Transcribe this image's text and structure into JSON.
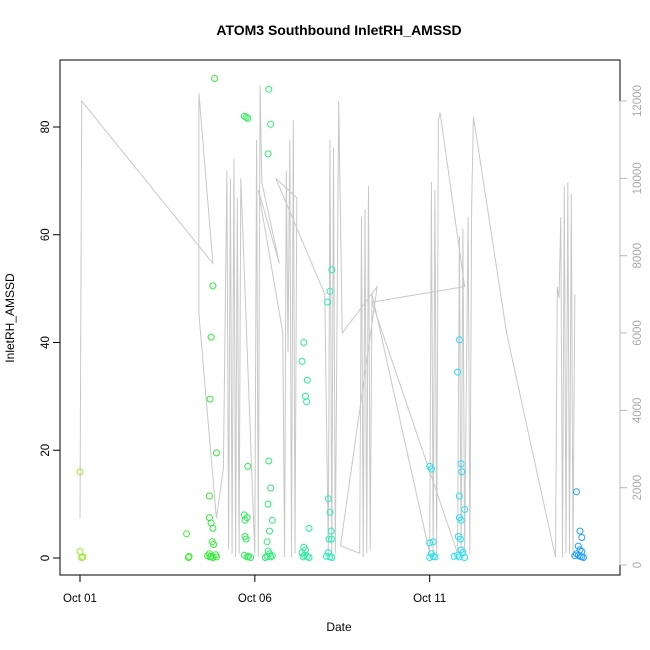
{
  "chart_data": {
    "type": "scatter",
    "title": "ATOM3 Southbound InletRH_AMSSD",
    "xlabel": "Date",
    "ylabel": "InletRH_AMSSD",
    "x_axis": {
      "range_days": [
        0,
        14.7
      ],
      "ticks": [
        {
          "day": 0,
          "label": "Oct 01"
        },
        {
          "day": 5,
          "label": "Oct 06"
        },
        {
          "day": 10,
          "label": "Oct 11"
        }
      ]
    },
    "y_left": {
      "range": [
        -3.5,
        92.5
      ],
      "ticks": [
        0,
        20,
        40,
        60,
        80
      ]
    },
    "y_right": {
      "range": [
        -200,
        12800
      ],
      "ticks": [
        0,
        2000,
        4000,
        6000,
        8000,
        10000,
        12000
      ],
      "color": "#bbbbbb"
    },
    "line_series": {
      "color": "#c8c8c8",
      "points": [
        [
          0.0,
          1200
        ],
        [
          0.05,
          12000
        ],
        [
          3.8,
          7800
        ],
        [
          3.4,
          12200
        ],
        [
          3.4,
          6500
        ],
        [
          3.9,
          1200
        ],
        [
          4.1,
          2500
        ],
        [
          4.2,
          10200
        ],
        [
          4.25,
          400
        ],
        [
          4.3,
          10000
        ],
        [
          4.35,
          300
        ],
        [
          4.4,
          10500
        ],
        [
          4.45,
          200
        ],
        [
          4.5,
          9500
        ],
        [
          4.55,
          300
        ],
        [
          4.6,
          10000
        ],
        [
          5.0,
          300
        ],
        [
          5.05,
          11000
        ],
        [
          5.1,
          200
        ],
        [
          5.15,
          12400
        ],
        [
          5.2,
          9900
        ],
        [
          5.7,
          7800
        ],
        [
          5.1,
          9700
        ],
        [
          5.8,
          6000
        ],
        [
          5.85,
          200
        ],
        [
          5.9,
          10200
        ],
        [
          5.95,
          5500
        ],
        [
          6.0,
          11000
        ],
        [
          6.05,
          200
        ],
        [
          6.1,
          11500
        ],
        [
          6.15,
          300
        ],
        [
          6.2,
          9500
        ],
        [
          5.6,
          10000
        ],
        [
          7.0,
          7000
        ],
        [
          7.1,
          300
        ],
        [
          7.15,
          11000
        ],
        [
          7.2,
          200
        ],
        [
          7.25,
          10800
        ],
        [
          7.3,
          300
        ],
        [
          7.4,
          12000
        ],
        [
          7.5,
          6000
        ],
        [
          8.5,
          7200
        ],
        [
          7.45,
          500
        ],
        [
          8.0,
          300
        ],
        [
          8.05,
          9000
        ],
        [
          8.1,
          200
        ],
        [
          8.15,
          9200
        ],
        [
          8.2,
          300
        ],
        [
          8.25,
          9800
        ],
        [
          8.3,
          400
        ],
        [
          8.35,
          7000
        ],
        [
          10.0,
          300
        ],
        [
          10.05,
          9900
        ],
        [
          10.1,
          200
        ],
        [
          10.15,
          9700
        ],
        [
          10.2,
          300
        ],
        [
          10.25,
          11500
        ],
        [
          10.3,
          11700
        ],
        [
          11.0,
          7200
        ],
        [
          8.35,
          6800
        ],
        [
          10.8,
          300
        ],
        [
          10.85,
          8500
        ],
        [
          10.9,
          200
        ],
        [
          10.95,
          8700
        ],
        [
          11.0,
          300
        ],
        [
          11.1,
          9000
        ],
        [
          11.15,
          300
        ],
        [
          11.2,
          9200
        ],
        [
          11.25,
          11600
        ],
        [
          12.2,
          6000
        ],
        [
          13.6,
          200
        ],
        [
          13.65,
          7200
        ],
        [
          13.7,
          6900
        ],
        [
          13.75,
          9000
        ],
        [
          13.8,
          200
        ],
        [
          13.85,
          9800
        ],
        [
          13.9,
          300
        ],
        [
          13.95,
          9900
        ],
        [
          14.0,
          300
        ],
        [
          14.05,
          9600
        ],
        [
          14.1,
          200
        ],
        [
          14.15,
          7000
        ]
      ]
    },
    "scatter_points": [
      [
        0.0,
        16
      ],
      [
        0.0,
        1.2
      ],
      [
        0.05,
        0.1
      ],
      [
        0.08,
        0.2
      ],
      [
        3.05,
        4.5
      ],
      [
        3.1,
        0.1
      ],
      [
        3.12,
        0.3
      ],
      [
        3.7,
        11.5
      ],
      [
        3.72,
        29.5
      ],
      [
        3.75,
        41
      ],
      [
        3.8,
        50.5
      ],
      [
        3.85,
        89
      ],
      [
        3.9,
        19.5
      ],
      [
        3.7,
        7.5
      ],
      [
        3.75,
        6.5
      ],
      [
        3.8,
        5.5
      ],
      [
        3.78,
        3
      ],
      [
        3.82,
        2.5
      ],
      [
        3.7,
        0.8
      ],
      [
        3.75,
        0.3
      ],
      [
        3.8,
        0.1
      ],
      [
        3.88,
        0.6
      ],
      [
        3.9,
        0.2
      ],
      [
        3.65,
        0.4
      ],
      [
        3.72,
        0.2
      ],
      [
        4.7,
        82
      ],
      [
        4.75,
        81.8
      ],
      [
        4.8,
        81.6
      ],
      [
        4.7,
        8
      ],
      [
        4.72,
        7
      ],
      [
        4.78,
        7.5
      ],
      [
        4.8,
        17
      ],
      [
        4.72,
        4
      ],
      [
        4.75,
        3.5
      ],
      [
        4.7,
        0.5
      ],
      [
        4.78,
        0.2
      ],
      [
        4.82,
        0.3
      ],
      [
        4.88,
        0.1
      ],
      [
        5.4,
        87
      ],
      [
        5.45,
        80.5
      ],
      [
        5.38,
        75
      ],
      [
        5.4,
        18
      ],
      [
        5.45,
        13
      ],
      [
        5.38,
        10
      ],
      [
        5.5,
        7
      ],
      [
        5.42,
        5
      ],
      [
        5.35,
        3
      ],
      [
        5.38,
        1.3
      ],
      [
        5.42,
        0.8
      ],
      [
        5.35,
        0.3
      ],
      [
        5.45,
        0.2
      ],
      [
        5.5,
        0.4
      ],
      [
        5.3,
        0.1
      ],
      [
        6.4,
        40
      ],
      [
        6.35,
        36.5
      ],
      [
        6.5,
        33
      ],
      [
        6.45,
        30
      ],
      [
        6.48,
        29
      ],
      [
        6.55,
        5.5
      ],
      [
        6.4,
        2
      ],
      [
        6.45,
        1.5
      ],
      [
        6.35,
        1
      ],
      [
        6.42,
        0.5
      ],
      [
        6.5,
        0.3
      ],
      [
        6.55,
        0.1
      ],
      [
        6.38,
        0.2
      ],
      [
        7.2,
        53.5
      ],
      [
        7.15,
        49.5
      ],
      [
        7.08,
        47.5
      ],
      [
        7.1,
        11
      ],
      [
        7.15,
        8.5
      ],
      [
        7.18,
        5
      ],
      [
        7.12,
        3.5
      ],
      [
        7.2,
        3.5
      ],
      [
        7.1,
        1
      ],
      [
        7.05,
        0.3
      ],
      [
        7.15,
        0.2
      ],
      [
        7.2,
        0.1
      ],
      [
        10.0,
        17
      ],
      [
        10.05,
        16.5
      ],
      [
        10.1,
        3
      ],
      [
        10.0,
        2.8
      ],
      [
        10.05,
        0.8
      ],
      [
        10.1,
        0.3
      ],
      [
        10.0,
        0.1
      ],
      [
        10.15,
        0.2
      ],
      [
        10.85,
        40.5
      ],
      [
        10.8,
        34.5
      ],
      [
        10.9,
        17.5
      ],
      [
        10.92,
        16
      ],
      [
        10.85,
        11.5
      ],
      [
        11.0,
        9
      ],
      [
        10.85,
        7.5
      ],
      [
        10.9,
        7
      ],
      [
        10.82,
        4
      ],
      [
        10.88,
        3.5
      ],
      [
        10.9,
        1.5
      ],
      [
        10.95,
        1
      ],
      [
        10.8,
        0.5
      ],
      [
        10.85,
        0.2
      ],
      [
        11.0,
        0.1
      ],
      [
        10.7,
        0.3
      ],
      [
        14.2,
        12.3
      ],
      [
        14.3,
        5
      ],
      [
        14.35,
        3.8
      ],
      [
        14.25,
        2.2
      ],
      [
        14.3,
        1.5
      ],
      [
        14.35,
        1.2
      ],
      [
        14.2,
        0.8
      ],
      [
        14.25,
        0.5
      ],
      [
        14.3,
        0.3
      ],
      [
        14.35,
        0.2
      ],
      [
        14.4,
        0.1
      ],
      [
        14.15,
        0.4
      ]
    ],
    "point_color_ramp": [
      "#99ee22",
      "#33ee33",
      "#22eebb",
      "#22ddff",
      "#2299ff"
    ],
    "legend": "none",
    "grid": false
  }
}
